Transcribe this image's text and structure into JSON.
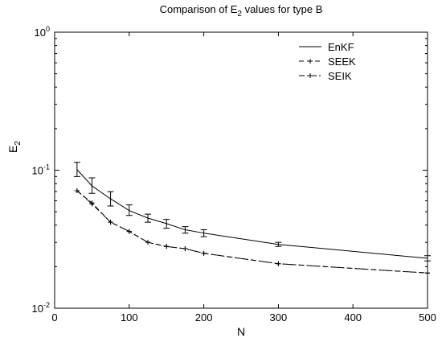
{
  "chart_data": {
    "type": "line",
    "title_main": "Comparison of E",
    "title_sub": "2",
    "title_rest": " values for type B",
    "xlabel": "N",
    "ylabel_main": "E",
    "ylabel_sub": "2",
    "xlim": [
      0,
      500
    ],
    "ylim": [
      0.01,
      1
    ],
    "yscale": "log",
    "x_ticks": [
      0,
      100,
      200,
      300,
      400,
      500
    ],
    "x_tick_labels": [
      "0",
      "100",
      "200",
      "300",
      "400",
      "500"
    ],
    "y_ticks": [
      {
        "value": 1,
        "base": "10",
        "exp": "0"
      },
      {
        "value": 0.1,
        "base": "10",
        "exp": "-1"
      },
      {
        "value": 0.01,
        "base": "10",
        "exp": "-2"
      }
    ],
    "grid": false,
    "legend_position": "top-right",
    "x": [
      30,
      50,
      75,
      100,
      125,
      150,
      175,
      200,
      300,
      500
    ],
    "series": [
      {
        "name": "EnKF",
        "style": "solid",
        "marker": "none",
        "color": "#000000",
        "values": [
          0.101,
          0.077,
          0.062,
          0.051,
          0.045,
          0.041,
          0.037,
          0.035,
          0.029,
          0.023
        ],
        "err_low": [
          0.09,
          0.068,
          0.055,
          0.047,
          0.042,
          0.038,
          0.035,
          0.033,
          0.028,
          0.022
        ],
        "err_high": [
          0.114,
          0.088,
          0.07,
          0.056,
          0.048,
          0.044,
          0.039,
          0.037,
          0.03,
          0.024
        ]
      },
      {
        "name": "SEEK",
        "style": "dashed",
        "marker": "plus",
        "color": "#000000",
        "values": [
          0.071,
          0.058,
          0.042,
          0.036,
          0.03,
          0.028,
          0.027,
          0.025,
          0.021,
          0.018
        ]
      },
      {
        "name": "SEIK",
        "style": "dashdot",
        "marker": "plus",
        "color": "#000000",
        "values": [
          0.071,
          0.057,
          0.042,
          0.036,
          0.03,
          0.028,
          0.027,
          0.025,
          0.021,
          0.018
        ]
      }
    ]
  }
}
